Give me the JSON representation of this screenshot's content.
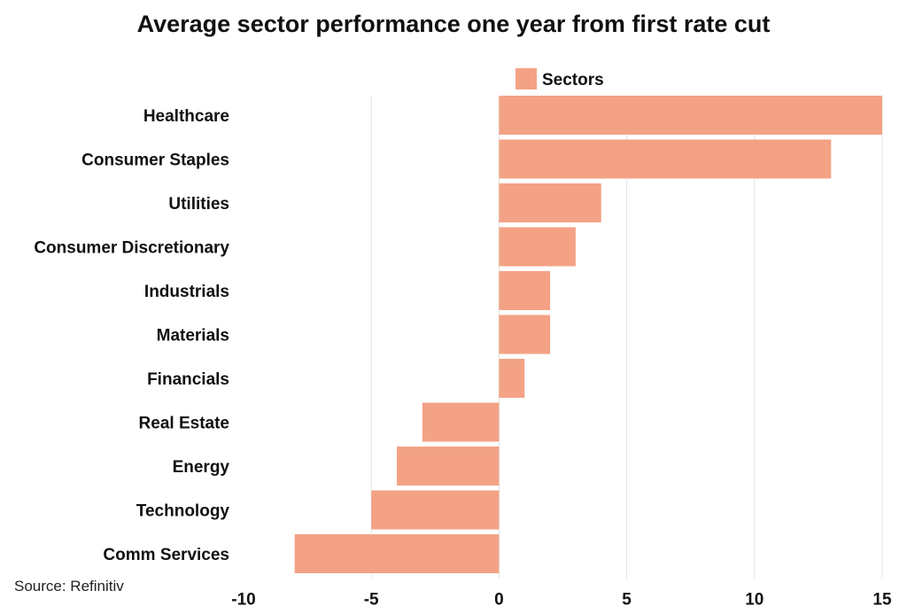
{
  "title": "Average sector performance one year from first rate cut",
  "source": "Source: Refinitiv",
  "colors": {
    "bar": "#f4a285",
    "grid": "#e3e3e3",
    "text": "#111111"
  },
  "chart_data": {
    "type": "bar",
    "orientation": "horizontal",
    "title": "Average sector performance one year from first rate cut",
    "xlabel": "",
    "ylabel": "",
    "legend": {
      "position": "top-center",
      "entries": [
        "Sectors"
      ]
    },
    "grid": true,
    "xlim": [
      -10,
      15
    ],
    "xticks": [
      -10,
      -5,
      0,
      5,
      10,
      15
    ],
    "categories": [
      "Healthcare",
      "Consumer Staples",
      "Utilities",
      "Consumer Discretionary",
      "Industrials",
      "Materials",
      "Financials",
      "Real Estate",
      "Energy",
      "Technology",
      "Comm Services"
    ],
    "series": [
      {
        "name": "Sectors",
        "values": [
          15,
          13,
          4,
          3,
          2,
          2,
          1,
          -3,
          -4,
          -5,
          -8
        ]
      }
    ]
  }
}
